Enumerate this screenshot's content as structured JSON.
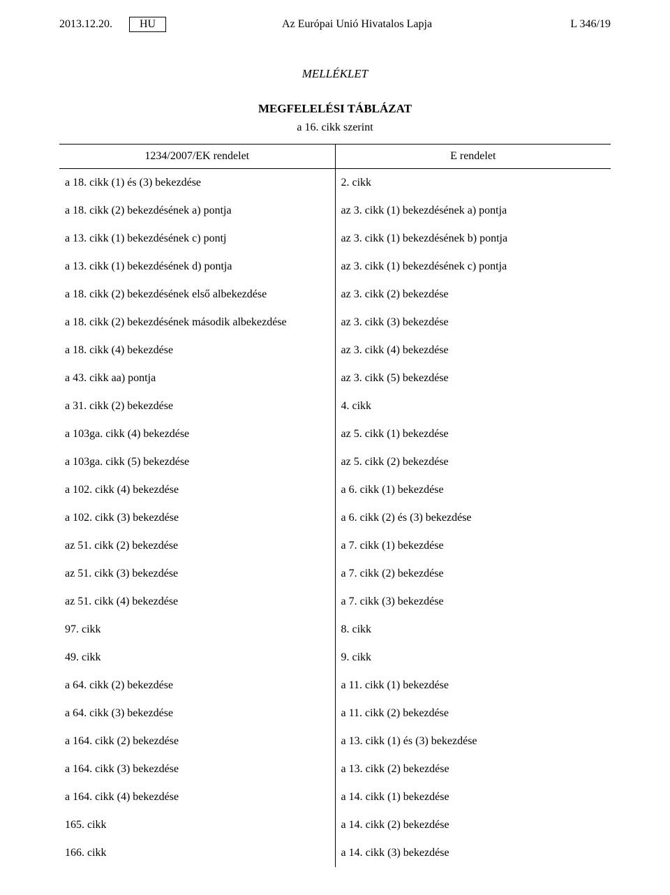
{
  "header": {
    "date": "2013.12.20.",
    "lang": "HU",
    "journal_title": "Az Európai Unió Hivatalos Lapja",
    "page_ref": "L 346/19"
  },
  "annex_label": "MELLÉKLET",
  "table_heading": "MEGFELELÉSI TÁBLÁZAT",
  "table_subheading": "a 16. cikk szerint",
  "columns": {
    "left": "1234/2007/EK rendelet",
    "right": "E rendelet"
  },
  "rows": [
    {
      "l": "a 18. cikk (1) és (3) bekezdése",
      "r": "2. cikk"
    },
    {
      "l": "a 18. cikk (2) bekezdésének a) pontja",
      "r": "az 3. cikk (1) bekezdésének a) pontja"
    },
    {
      "l": "a 13. cikk (1) bekezdésének c) pontj",
      "r": "az 3. cikk (1) bekezdésének b) pontja"
    },
    {
      "l": "a 13. cikk (1) bekezdésének d) pontja",
      "r": "az 3. cikk (1) bekezdésének c) pontja"
    },
    {
      "l": "a 18. cikk (2) bekezdésének első albekezdése",
      "r": "az 3. cikk (2) bekezdése"
    },
    {
      "l": "a 18. cikk (2) bekezdésének második albekezdése",
      "r": "az 3. cikk (3) bekezdése"
    },
    {
      "l": "a 18. cikk (4) bekezdése",
      "r": "az 3. cikk (4) bekezdése"
    },
    {
      "l": "a 43. cikk aa) pontja",
      "r": "az 3. cikk (5) bekezdése"
    },
    {
      "l": "a 31. cikk (2) bekezdése",
      "r": "4. cikk"
    },
    {
      "l": "a 103ga. cikk (4) bekezdése",
      "r": "az 5. cikk (1) bekezdése"
    },
    {
      "l": "a 103ga. cikk (5) bekezdése",
      "r": "az 5. cikk (2) bekezdése"
    },
    {
      "l": "a 102. cikk (4) bekezdése",
      "r": "a 6. cikk (1) bekezdése"
    },
    {
      "l": "a 102. cikk (3) bekezdése",
      "r": "a 6. cikk (2) és (3) bekezdése"
    },
    {
      "l": "az 51. cikk (2) bekezdése",
      "r": "a 7. cikk (1) bekezdése"
    },
    {
      "l": "az 51. cikk (3) bekezdése",
      "r": "a 7. cikk (2) bekezdése"
    },
    {
      "l": "az 51. cikk (4) bekezdése",
      "r": "a 7. cikk (3) bekezdése"
    },
    {
      "l": "97. cikk",
      "r": "8. cikk"
    },
    {
      "l": "49. cikk",
      "r": "9. cikk"
    },
    {
      "l": "a 64. cikk (2) bekezdése",
      "r": "a 11. cikk (1) bekezdése"
    },
    {
      "l": "a 64. cikk (3) bekezdése",
      "r": "a 11. cikk (2) bekezdése"
    },
    {
      "l": "a 164. cikk (2) bekezdése",
      "r": "a 13. cikk (1) és (3) bekezdése"
    },
    {
      "l": "a 164. cikk (3) bekezdése",
      "r": "a 13. cikk (2) bekezdése"
    },
    {
      "l": "a 164. cikk (4) bekezdése",
      "r": "a 14. cikk (1) bekezdése"
    },
    {
      "l": "165. cikk",
      "r": "a 14. cikk (2) bekezdése"
    },
    {
      "l": "166. cikk",
      "r": "a 14. cikk (3) bekezdése"
    }
  ]
}
